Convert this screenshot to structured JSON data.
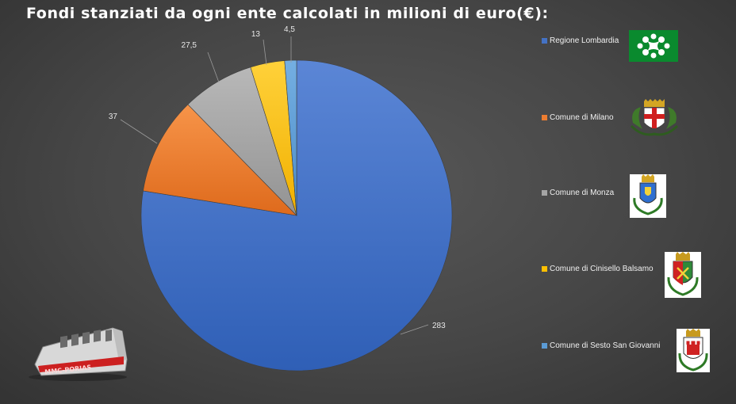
{
  "title": "Fondi stanziati da ogni ente calcolati in milioni di euro(€):",
  "chart_data": {
    "type": "pie",
    "title": "Fondi stanziati da ogni ente calcolati in milioni di euro(€):",
    "categories": [
      "Regione Lombardia",
      "Comune di Milano",
      "Comune di Monza",
      "Comune di Cinisello Balsamo",
      "Comune di Sesto San Giovanni"
    ],
    "values": [
      283,
      37,
      27.5,
      13,
      4.5
    ],
    "value_labels": [
      "283",
      "37",
      "27,5",
      "13",
      "4,5"
    ],
    "colors": [
      "#4472c4",
      "#ed7d31",
      "#a5a5a5",
      "#ffc000",
      "#5b9bd5"
    ],
    "legend": "right"
  },
  "legend_items": [
    {
      "label": "Regione Lombardia",
      "color": "#4472c4",
      "icon": "lombardia-rosa-camuna-flag-icon"
    },
    {
      "label": "Comune di Milano",
      "color": "#ed7d31",
      "icon": "milano-coat-of-arms-icon"
    },
    {
      "label": "Comune di Monza",
      "color": "#a5a5a5",
      "icon": "monza-coat-of-arms-icon"
    },
    {
      "label": "Comune di Cinisello Balsamo",
      "color": "#ffc000",
      "icon": "cinisello-coat-of-arms-icon"
    },
    {
      "label": "Comune di Sesto San Giovanni",
      "color": "#5b9bd5",
      "icon": "sesto-coat-of-arms-icon"
    }
  ],
  "logo": {
    "text": "MMC-PORIAS",
    "icon": "metro-train-logo-icon"
  }
}
